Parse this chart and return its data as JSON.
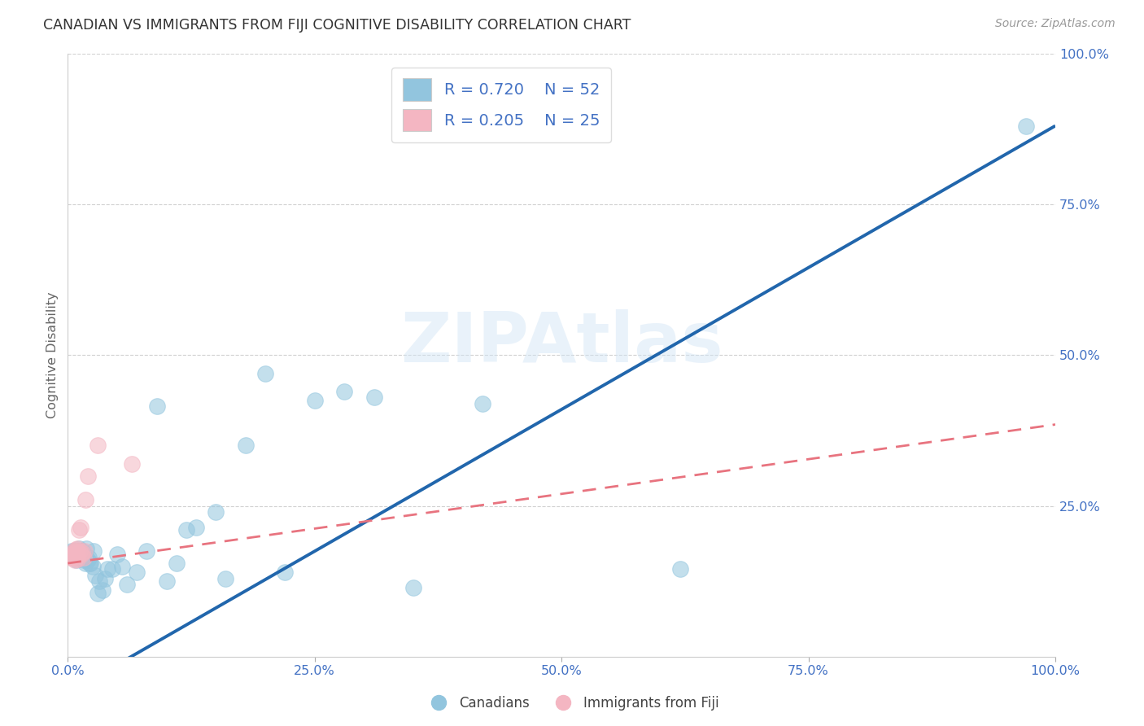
{
  "title": "CANADIAN VS IMMIGRANTS FROM FIJI COGNITIVE DISABILITY CORRELATION CHART",
  "source": "Source: ZipAtlas.com",
  "ylabel": "Cognitive Disability",
  "xlim": [
    0,
    1.0
  ],
  "ylim": [
    0,
    1.0
  ],
  "xticks": [
    0.0,
    0.25,
    0.5,
    0.75,
    1.0
  ],
  "xtick_labels": [
    "0.0%",
    "25.0%",
    "50.0%",
    "75.0%",
    "100.0%"
  ],
  "yticks": [
    0.25,
    0.5,
    0.75,
    1.0
  ],
  "ytick_labels": [
    "25.0%",
    "50.0%",
    "75.0%",
    "100.0%"
  ],
  "watermark": "ZIPAtlas",
  "legend_r1": "R = 0.720",
  "legend_n1": "N = 52",
  "legend_r2": "R = 0.205",
  "legend_n2": "N = 25",
  "blue_color": "#92c5de",
  "pink_color": "#f4b6c2",
  "blue_line_color": "#2166ac",
  "pink_line_color": "#e8737f",
  "canadians_x": [
    0.004,
    0.006,
    0.007,
    0.008,
    0.009,
    0.01,
    0.01,
    0.011,
    0.012,
    0.012,
    0.013,
    0.014,
    0.015,
    0.016,
    0.017,
    0.018,
    0.019,
    0.02,
    0.021,
    0.022,
    0.023,
    0.025,
    0.026,
    0.028,
    0.03,
    0.032,
    0.035,
    0.038,
    0.04,
    0.045,
    0.05,
    0.055,
    0.06,
    0.07,
    0.08,
    0.09,
    0.1,
    0.11,
    0.12,
    0.13,
    0.15,
    0.16,
    0.18,
    0.2,
    0.22,
    0.25,
    0.28,
    0.31,
    0.35,
    0.42,
    0.62,
    0.97
  ],
  "canadians_y": [
    0.175,
    0.175,
    0.17,
    0.165,
    0.16,
    0.165,
    0.175,
    0.18,
    0.17,
    0.175,
    0.165,
    0.17,
    0.175,
    0.16,
    0.165,
    0.155,
    0.18,
    0.16,
    0.165,
    0.155,
    0.155,
    0.15,
    0.175,
    0.135,
    0.105,
    0.125,
    0.11,
    0.13,
    0.145,
    0.145,
    0.17,
    0.15,
    0.12,
    0.14,
    0.175,
    0.415,
    0.125,
    0.155,
    0.21,
    0.215,
    0.24,
    0.13,
    0.35,
    0.47,
    0.14,
    0.425,
    0.44,
    0.43,
    0.115,
    0.42,
    0.145,
    0.88
  ],
  "fiji_x": [
    0.003,
    0.004,
    0.005,
    0.006,
    0.006,
    0.007,
    0.007,
    0.008,
    0.008,
    0.009,
    0.009,
    0.01,
    0.01,
    0.01,
    0.011,
    0.012,
    0.013,
    0.014,
    0.015,
    0.016,
    0.017,
    0.018,
    0.02,
    0.03,
    0.065
  ],
  "fiji_y": [
    0.165,
    0.17,
    0.165,
    0.168,
    0.175,
    0.16,
    0.172,
    0.178,
    0.165,
    0.17,
    0.175,
    0.162,
    0.168,
    0.18,
    0.21,
    0.175,
    0.215,
    0.17,
    0.172,
    0.165,
    0.175,
    0.26,
    0.3,
    0.35,
    0.32
  ],
  "blue_line_x": [
    0.0,
    1.0
  ],
  "blue_line_y": [
    -0.06,
    0.88
  ],
  "pink_line_x": [
    0.0,
    1.0
  ],
  "pink_line_y": [
    0.155,
    0.385
  ]
}
